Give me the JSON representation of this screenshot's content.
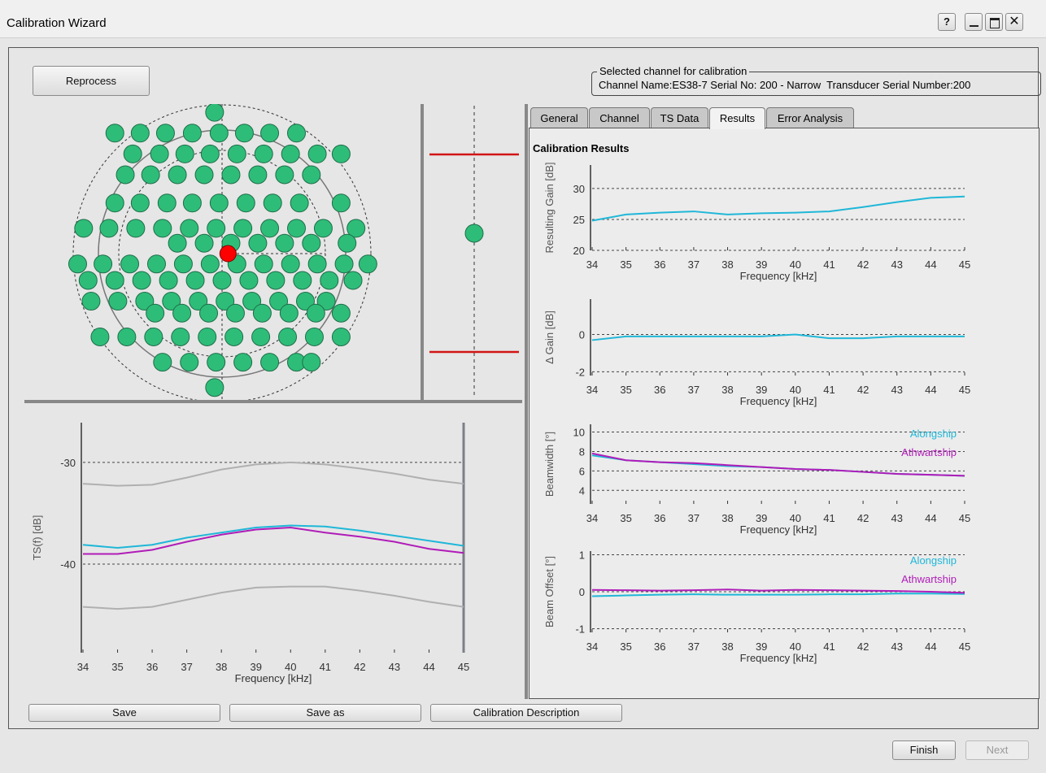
{
  "window": {
    "title": "Calibration Wizard",
    "help": "?"
  },
  "buttons": {
    "reprocess": "Reprocess",
    "save": "Save",
    "save_as": "Save as",
    "calibration_description": "Calibration Description",
    "finish": "Finish",
    "next": "Next"
  },
  "channel": {
    "legend": "Selected channel for calibration",
    "info": "Channel Name:ES38-7 Serial No: 200 - Narrow  Transducer Serial Number:200"
  },
  "tabs": [
    "General",
    "Channel",
    "TS Data",
    "Results",
    "Error Analysis"
  ],
  "results_title": "Calibration Results",
  "chart_data": [
    {
      "type": "scatter",
      "color": "#2ebd78",
      "xlim": [
        -1,
        1
      ],
      "ylim": [
        -1,
        1
      ],
      "x": [
        -0.72,
        -0.55,
        -0.38,
        -0.2,
        -0.02,
        0.15,
        0.32,
        0.5,
        -0.6,
        -0.42,
        -0.25,
        -0.08,
        0.1,
        0.28,
        0.46,
        0.64,
        0.8,
        -0.65,
        -0.48,
        -0.3,
        -0.12,
        0.06,
        0.24,
        0.42,
        0.6,
        -0.72,
        -0.55,
        -0.37,
        -0.2,
        -0.02,
        0.16,
        0.34,
        0.52,
        0.8,
        -0.93,
        -0.76,
        -0.58,
        -0.4,
        -0.22,
        -0.04,
        0.14,
        0.32,
        0.5,
        0.68,
        0.9,
        -0.3,
        -0.12,
        0.06,
        0.24,
        0.42,
        0.6,
        0.84,
        -0.97,
        -0.8,
        -0.62,
        -0.44,
        -0.26,
        -0.08,
        0.1,
        0.28,
        0.46,
        0.64,
        0.82,
        0.98,
        -0.9,
        -0.72,
        -0.54,
        -0.36,
        -0.18,
        0.0,
        0.18,
        0.36,
        0.54,
        0.72,
        0.88,
        -0.88,
        -0.7,
        -0.52,
        -0.34,
        -0.16,
        0.02,
        0.2,
        0.38,
        0.56,
        0.7,
        -0.45,
        -0.27,
        -0.09,
        0.09,
        0.27,
        0.45,
        0.63,
        0.8,
        -0.82,
        -0.64,
        -0.46,
        -0.28,
        -0.1,
        0.08,
        0.26,
        0.44,
        0.62,
        0.8,
        -0.4,
        -0.22,
        -0.04,
        0.14,
        0.32,
        0.5,
        0.6,
        -0.05,
        -0.05
      ],
      "y": [
        0.81,
        0.81,
        0.81,
        0.81,
        0.81,
        0.81,
        0.81,
        0.81,
        0.67,
        0.67,
        0.67,
        0.67,
        0.67,
        0.67,
        0.67,
        0.67,
        0.67,
        0.53,
        0.53,
        0.53,
        0.53,
        0.53,
        0.53,
        0.53,
        0.53,
        0.34,
        0.34,
        0.34,
        0.34,
        0.34,
        0.34,
        0.34,
        0.34,
        0.34,
        0.17,
        0.17,
        0.17,
        0.17,
        0.17,
        0.17,
        0.17,
        0.17,
        0.17,
        0.17,
        0.17,
        0.07,
        0.07,
        0.07,
        0.07,
        0.07,
        0.07,
        0.07,
        -0.07,
        -0.07,
        -0.07,
        -0.07,
        -0.07,
        -0.07,
        -0.07,
        -0.07,
        -0.07,
        -0.07,
        -0.07,
        -0.07,
        -0.18,
        -0.18,
        -0.18,
        -0.18,
        -0.18,
        -0.18,
        -0.18,
        -0.18,
        -0.18,
        -0.18,
        -0.18,
        -0.32,
        -0.32,
        -0.32,
        -0.32,
        -0.32,
        -0.32,
        -0.32,
        -0.32,
        -0.32,
        -0.32,
        -0.4,
        -0.4,
        -0.4,
        -0.4,
        -0.4,
        -0.4,
        -0.4,
        -0.4,
        -0.56,
        -0.56,
        -0.56,
        -0.56,
        -0.56,
        -0.56,
        -0.56,
        -0.56,
        -0.56,
        -0.56,
        -0.73,
        -0.73,
        -0.73,
        -0.73,
        -0.73,
        -0.73,
        -0.73,
        0.95,
        -0.9
      ],
      "highlight": {
        "x": 0.04,
        "y": 0.0,
        "color": "#ff0000"
      }
    },
    {
      "type": "line",
      "xlabel": "Frequency [kHz]",
      "ylabel": "TS(f) [dB]",
      "x": [
        34,
        35,
        36,
        37,
        38,
        39,
        40,
        41,
        42,
        43,
        44,
        45
      ],
      "xlim": [
        34,
        45
      ],
      "xticks": [
        34,
        35,
        36,
        37,
        38,
        39,
        40,
        41,
        42,
        43,
        44,
        45
      ],
      "ylim": [
        -48.7,
        -26.1
      ],
      "yticks": [
        -40,
        -30
      ],
      "series": [
        {
          "color": "#b0b0b0",
          "values": [
            -32.1,
            -32.3,
            -32.2,
            -31.5,
            -30.7,
            -30.2,
            -30.0,
            -30.2,
            -30.6,
            -31.1,
            -31.7,
            -32.1
          ]
        },
        {
          "color": "#b0b0b0",
          "values": [
            -44.2,
            -44.4,
            -44.2,
            -43.5,
            -42.8,
            -42.3,
            -42.2,
            -42.2,
            -42.6,
            -43.1,
            -43.7,
            -44.2
          ]
        },
        {
          "color": "#1fb7d8",
          "values": [
            -38.1,
            -38.4,
            -38.1,
            -37.4,
            -36.9,
            -36.4,
            -36.2,
            -36.3,
            -36.7,
            -37.2,
            -37.7,
            -38.2
          ]
        },
        {
          "color": "#b01cb8",
          "values": [
            -39.0,
            -39.0,
            -38.6,
            -37.8,
            -37.1,
            -36.6,
            -36.4,
            -36.9,
            -37.3,
            -37.8,
            -38.5,
            -38.9
          ]
        }
      ]
    },
    {
      "type": "line",
      "xlabel": "Frequency [kHz]",
      "ylabel": "Resulting Gain [dB]",
      "x": [
        34,
        35,
        36,
        37,
        38,
        39,
        40,
        41,
        42,
        43,
        44,
        45
      ],
      "xlim": [
        34,
        45
      ],
      "xticks": [
        34,
        35,
        36,
        37,
        38,
        39,
        40,
        41,
        42,
        43,
        44,
        45
      ],
      "ylim": [
        20,
        33.8
      ],
      "yticks": [
        20,
        25,
        30
      ],
      "series": [
        {
          "color": "#1fb7d8",
          "values": [
            24.8,
            25.8,
            26.1,
            26.3,
            25.8,
            26.0,
            26.1,
            26.3,
            27.0,
            27.8,
            28.5,
            28.7
          ]
        }
      ]
    },
    {
      "type": "line",
      "xlabel": "Frequency [kHz]",
      "ylabel": "Δ Gain [dB]",
      "x": [
        34,
        35,
        36,
        37,
        38,
        39,
        40,
        41,
        42,
        43,
        44,
        45
      ],
      "xlim": [
        34,
        45
      ],
      "xticks": [
        34,
        35,
        36,
        37,
        38,
        39,
        40,
        41,
        42,
        43,
        44,
        45
      ],
      "ylim": [
        -2.2,
        1.9
      ],
      "yticks": [
        -2,
        0
      ],
      "series": [
        {
          "color": "#1fb7d8",
          "values": [
            -0.3,
            -0.1,
            -0.1,
            -0.1,
            -0.1,
            -0.1,
            0.0,
            -0.2,
            -0.2,
            -0.1,
            -0.1,
            -0.1
          ]
        }
      ]
    },
    {
      "type": "line",
      "xlabel": "Frequency [kHz]",
      "ylabel": "Beamwidth [°]",
      "x": [
        34,
        35,
        36,
        37,
        38,
        39,
        40,
        41,
        42,
        43,
        44,
        45
      ],
      "xlim": [
        34,
        45
      ],
      "xticks": [
        34,
        35,
        36,
        37,
        38,
        39,
        40,
        41,
        42,
        43,
        44,
        45
      ],
      "ylim": [
        2.6,
        10.8
      ],
      "yticks": [
        4,
        6,
        8,
        10
      ],
      "series": [
        {
          "name": "Alongship",
          "color": "#1fb7d8",
          "values": [
            7.6,
            7.1,
            6.9,
            6.7,
            6.5,
            6.4,
            6.2,
            6.1,
            5.9,
            5.7,
            5.6,
            5.5
          ]
        },
        {
          "name": "Athwartship",
          "color": "#b01cb8",
          "values": [
            7.8,
            7.1,
            6.9,
            6.8,
            6.6,
            6.4,
            6.2,
            6.1,
            5.9,
            5.7,
            5.6,
            5.5
          ]
        }
      ]
    },
    {
      "type": "line",
      "xlabel": "Frequency [kHz]",
      "ylabel": "Beam Offset [°]",
      "x": [
        34,
        35,
        36,
        37,
        38,
        39,
        40,
        41,
        42,
        43,
        44,
        45
      ],
      "xlim": [
        34,
        45
      ],
      "xticks": [
        34,
        35,
        36,
        37,
        38,
        39,
        40,
        41,
        42,
        43,
        44,
        45
      ],
      "ylim": [
        -1.1,
        1.1
      ],
      "yticks": [
        -1,
        0,
        1
      ],
      "series": [
        {
          "name": "Alongship",
          "color": "#1fb7d8",
          "values": [
            -0.12,
            -0.1,
            -0.08,
            -0.07,
            -0.08,
            -0.08,
            -0.08,
            -0.07,
            -0.07,
            -0.05,
            -0.05,
            -0.06
          ]
        },
        {
          "name": "Athwartship",
          "color": "#b01cb8",
          "values": [
            0.05,
            0.04,
            0.03,
            0.04,
            0.06,
            0.03,
            0.05,
            0.04,
            0.03,
            0.02,
            0.0,
            -0.03
          ]
        }
      ]
    }
  ]
}
